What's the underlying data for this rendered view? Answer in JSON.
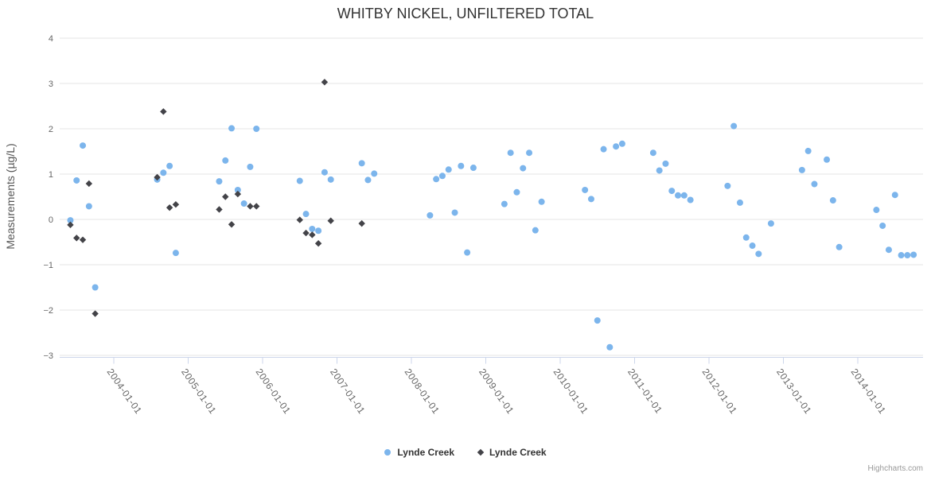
{
  "title": "WHITBY NICKEL, UNFILTERED TOTAL",
  "credits": "Highcharts.com",
  "colors": {
    "series1": "#7cb5ec",
    "series2": "#434348",
    "grid_line": "#e6e6e6",
    "axis_line": "#ccd6eb",
    "tick_label": "#666666",
    "title_text": "#333333",
    "y_axis_title_text": "#555555",
    "legend_text": "#333333",
    "credits_text": "#999999"
  },
  "chart_data": {
    "type": "scatter",
    "title": "WHITBY NICKEL, UNFILTERED TOTAL",
    "xlabel": "",
    "ylabel": "Measurements (µg/L)",
    "ylim": [
      -3,
      4
    ],
    "grid": true,
    "legend_position": "bottom",
    "y_ticks": [
      4,
      3,
      2,
      1,
      0,
      -1,
      -2,
      -3
    ],
    "x_tick_labels": [
      "2004-01-01",
      "2005-01-01",
      "2006-01-01",
      "2007-01-01",
      "2008-01-01",
      "2009-01-01",
      "2010-01-01",
      "2011-01-01",
      "2012-01-01",
      "2013-01-01",
      "2014-01-01"
    ],
    "series": [
      {
        "name": "Lynde Creek",
        "marker": "circle",
        "color": "#7cb5ec",
        "points": [
          [
            "2003-06",
            -0.02
          ],
          [
            "2003-07",
            0.86
          ],
          [
            "2003-08",
            1.63
          ],
          [
            "2003-09",
            0.29
          ],
          [
            "2003-10",
            -1.5
          ],
          [
            "2004-08",
            0.88
          ],
          [
            "2004-09",
            1.03
          ],
          [
            "2004-10",
            1.18
          ],
          [
            "2004-11",
            -0.74
          ],
          [
            "2005-06",
            0.84
          ],
          [
            "2005-07",
            1.3
          ],
          [
            "2005-08",
            2.01
          ],
          [
            "2005-09",
            0.65
          ],
          [
            "2005-10",
            0.35
          ],
          [
            "2005-11",
            1.16
          ],
          [
            "2005-12",
            2.0
          ],
          [
            "2006-07",
            0.85
          ],
          [
            "2006-08",
            0.12
          ],
          [
            "2006-09",
            -0.21
          ],
          [
            "2006-10",
            -0.25
          ],
          [
            "2006-11",
            1.04
          ],
          [
            "2006-12",
            0.88
          ],
          [
            "2007-05",
            1.24
          ],
          [
            "2007-06",
            0.87
          ],
          [
            "2007-07",
            1.01
          ],
          [
            "2008-04",
            0.09
          ],
          [
            "2008-05",
            0.89
          ],
          [
            "2008-06",
            0.96
          ],
          [
            "2008-07",
            1.1
          ],
          [
            "2008-08",
            0.15
          ],
          [
            "2008-09",
            1.18
          ],
          [
            "2008-10",
            -0.73
          ],
          [
            "2008-11",
            1.14
          ],
          [
            "2009-04",
            0.34
          ],
          [
            "2009-05",
            1.47
          ],
          [
            "2009-06",
            0.6
          ],
          [
            "2009-07",
            1.13
          ],
          [
            "2009-08",
            1.47
          ],
          [
            "2009-09",
            -0.24
          ],
          [
            "2009-10",
            0.39
          ],
          [
            "2010-05",
            0.65
          ],
          [
            "2010-06",
            0.45
          ],
          [
            "2010-07",
            -2.23
          ],
          [
            "2010-08",
            1.55
          ],
          [
            "2010-09",
            -2.82
          ],
          [
            "2010-10",
            1.61
          ],
          [
            "2010-11",
            1.67
          ],
          [
            "2011-04",
            1.47
          ],
          [
            "2011-05",
            1.08
          ],
          [
            "2011-06",
            1.23
          ],
          [
            "2011-07",
            0.63
          ],
          [
            "2011-08",
            0.53
          ],
          [
            "2011-09",
            0.53
          ],
          [
            "2011-10",
            0.43
          ],
          [
            "2012-04",
            0.74
          ],
          [
            "2012-05",
            2.06
          ],
          [
            "2012-06",
            0.37
          ],
          [
            "2012-07",
            -0.4
          ],
          [
            "2012-08",
            -0.58
          ],
          [
            "2012-09",
            -0.76
          ],
          [
            "2012-11",
            -0.09
          ],
          [
            "2013-04",
            1.09
          ],
          [
            "2013-05",
            1.51
          ],
          [
            "2013-06",
            0.78
          ],
          [
            "2013-08",
            1.32
          ],
          [
            "2013-09",
            0.42
          ],
          [
            "2013-10",
            -0.61
          ],
          [
            "2014-04",
            0.21
          ],
          [
            "2014-05",
            -0.14
          ],
          [
            "2014-06",
            -0.67
          ],
          [
            "2014-07",
            0.54
          ],
          [
            "2014-08",
            -0.79
          ],
          [
            "2014-09",
            -0.79
          ],
          [
            "2014-10",
            -0.78
          ]
        ]
      },
      {
        "name": "Lynde Creek",
        "marker": "diamond",
        "color": "#434348",
        "points": [
          [
            "2003-06",
            -0.12
          ],
          [
            "2003-07",
            -0.41
          ],
          [
            "2003-08",
            -0.45
          ],
          [
            "2003-09",
            0.79
          ],
          [
            "2003-10",
            -2.08
          ],
          [
            "2004-08",
            0.93
          ],
          [
            "2004-09",
            2.38
          ],
          [
            "2004-10",
            0.26
          ],
          [
            "2004-11",
            0.33
          ],
          [
            "2005-06",
            0.22
          ],
          [
            "2005-07",
            0.5
          ],
          [
            "2005-08",
            -0.11
          ],
          [
            "2005-09",
            0.56
          ],
          [
            "2005-11",
            0.29
          ],
          [
            "2005-12",
            0.29
          ],
          [
            "2006-07",
            -0.01
          ],
          [
            "2006-08",
            -0.3
          ],
          [
            "2006-09",
            -0.34
          ],
          [
            "2006-10",
            -0.53
          ],
          [
            "2006-11",
            3.03
          ],
          [
            "2006-12",
            -0.03
          ],
          [
            "2007-05",
            -0.09
          ]
        ]
      }
    ]
  }
}
